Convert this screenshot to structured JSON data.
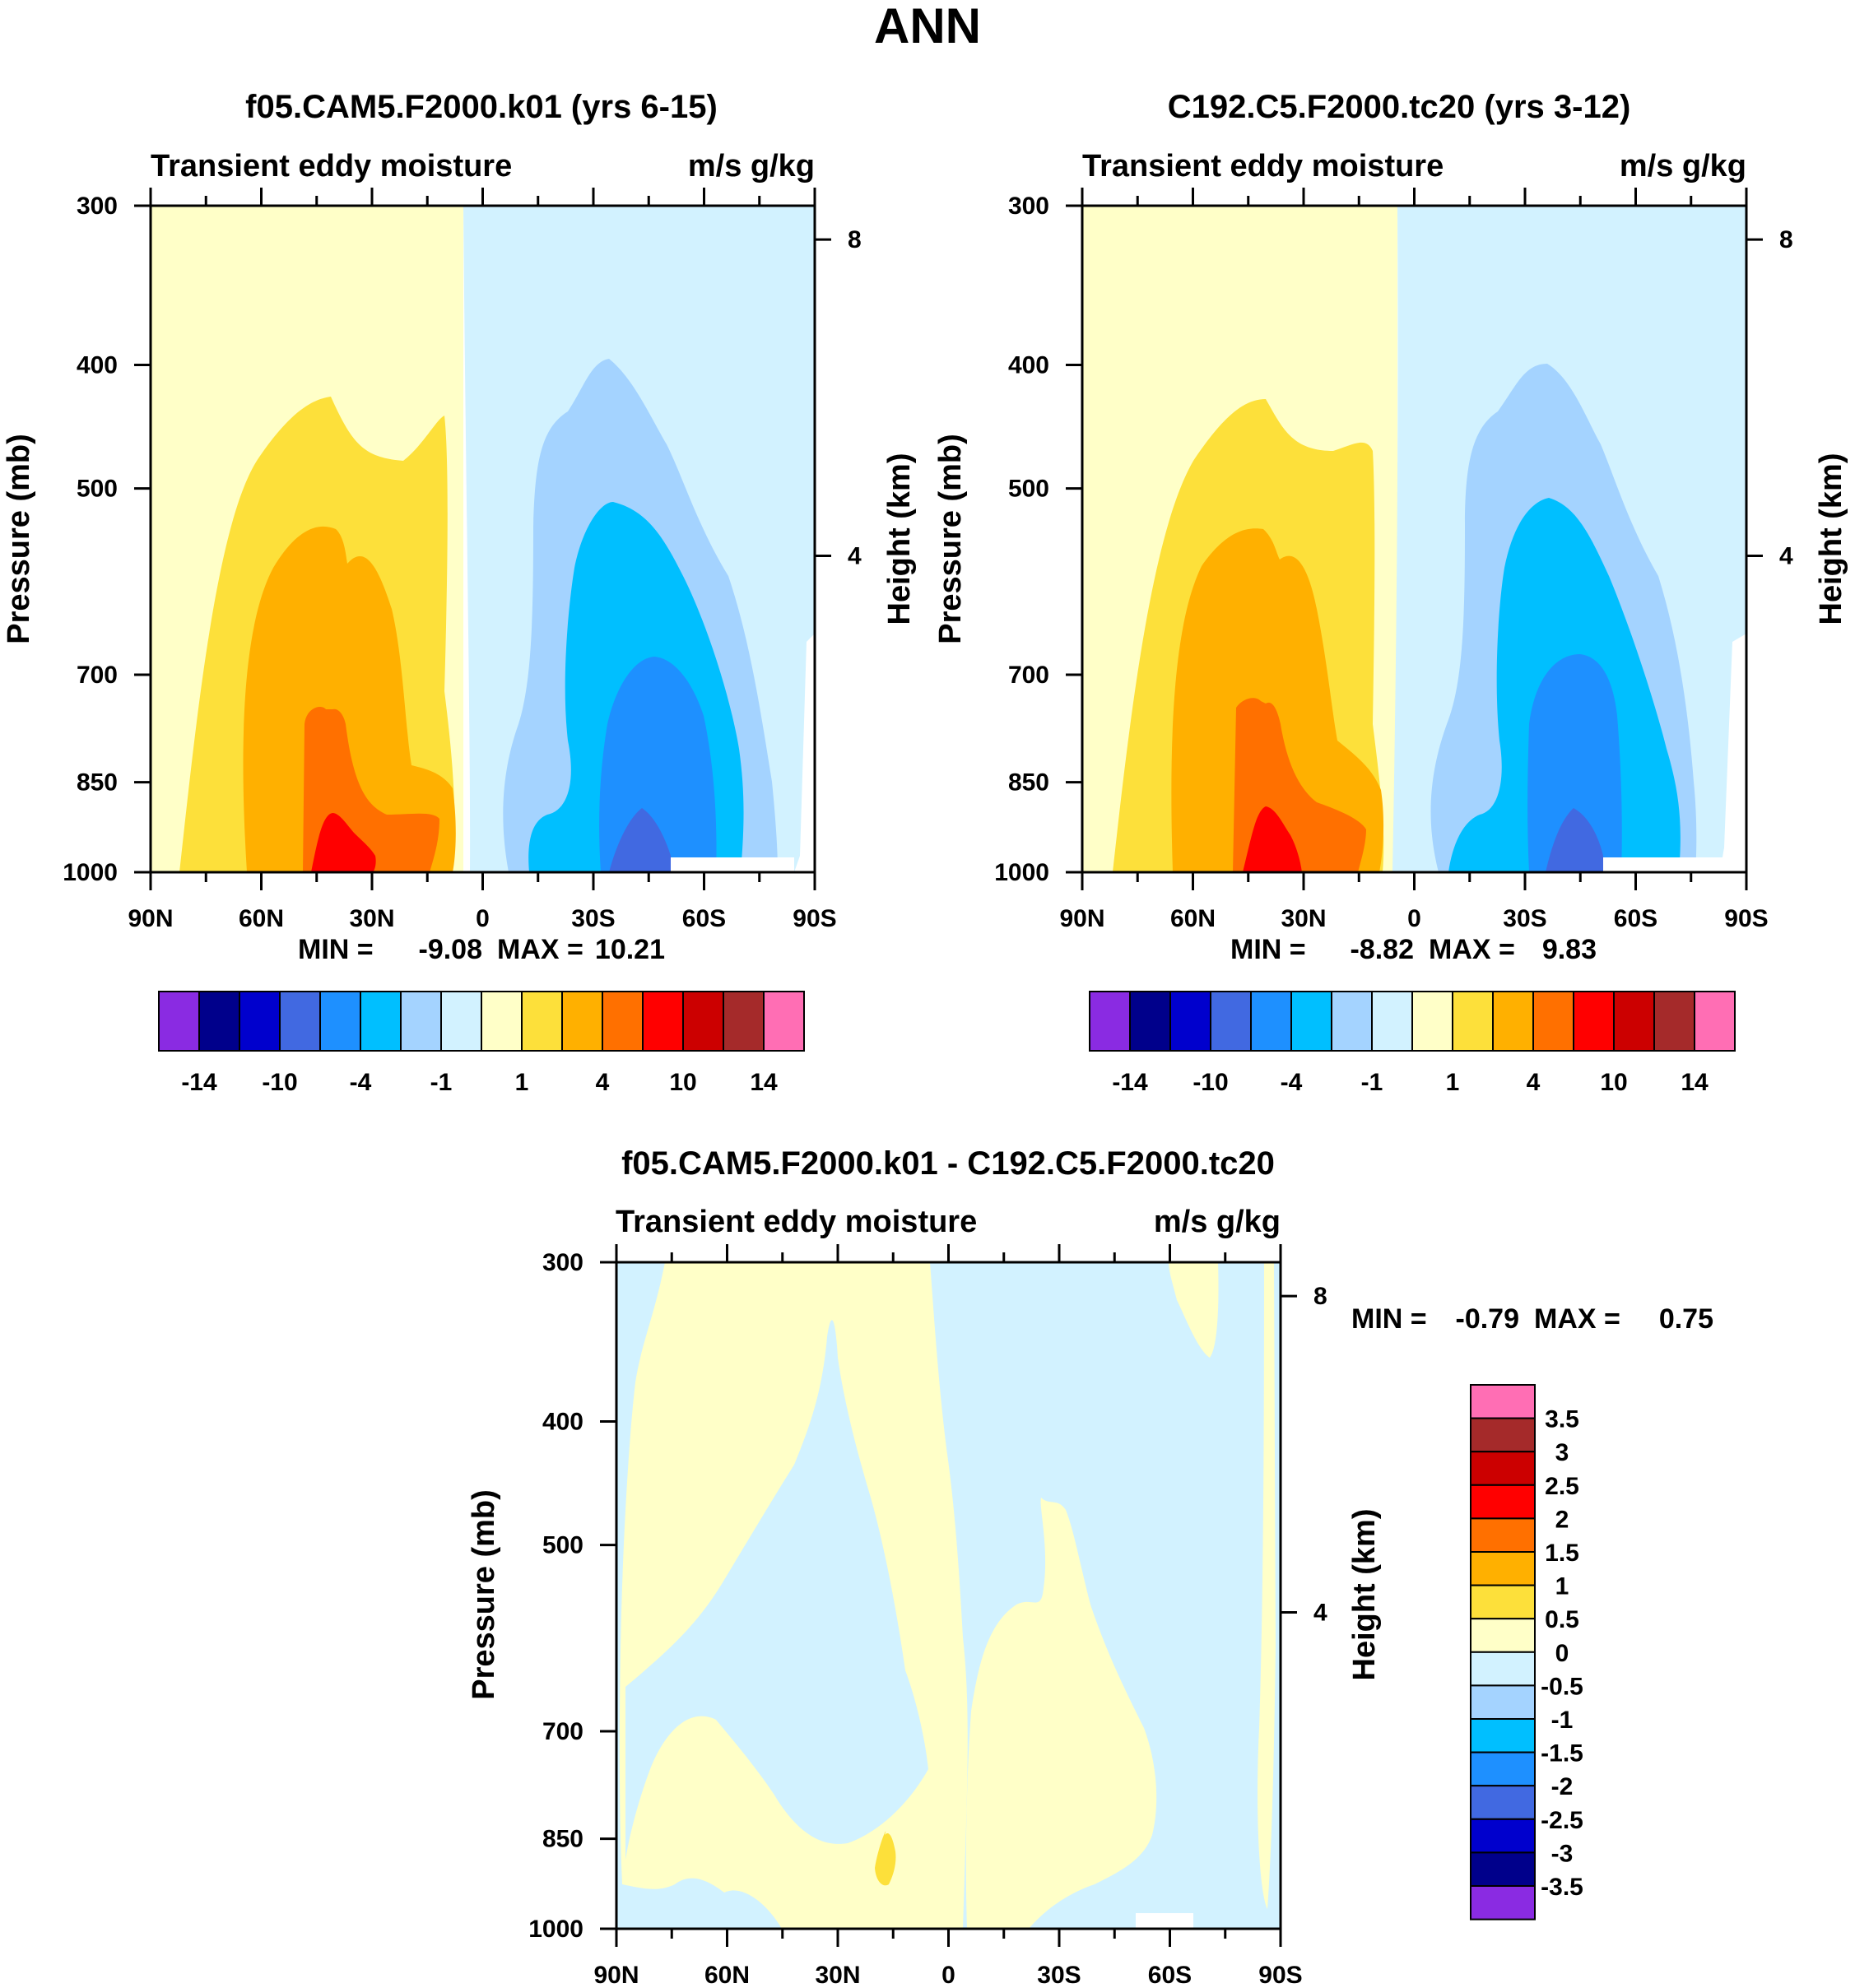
{
  "figure": {
    "title": "ANN"
  },
  "colors": {
    "main_levels_palette": [
      "#8a2be2",
      "#00008b",
      "#0000cd",
      "#4169e1",
      "#1e90ff",
      "#00bfff",
      "#a4d3ff",
      "#d2f2ff",
      "#ffffc8",
      "#fde03a",
      "#ffb000",
      "#ff7000",
      "#ff0000",
      "#cc0000",
      "#a52a2a",
      "#ff6eb4"
    ],
    "diff_levels_palette": [
      "#8a2be2",
      "#00008b",
      "#0000cd",
      "#4169e1",
      "#1e90ff",
      "#00bfff",
      "#a4d3ff",
      "#d2f2ff",
      "#ffffc8",
      "#fde03a",
      "#ffb000",
      "#ff7000",
      "#ff0000",
      "#cc0000",
      "#a52a2a",
      "#ff6eb4"
    ]
  },
  "chart_data": [
    {
      "type": "heatmap",
      "title": "f05.CAM5.F2000.k01 (yrs 6-15)",
      "left_label": "Transient eddy moisture",
      "right_label": "m/s g/kg",
      "ylabel": "Pressure (mb)",
      "y2label": "Height (km)",
      "x_ticks": [
        "90N",
        "60N",
        "30N",
        "0",
        "30S",
        "60S",
        "90S"
      ],
      "x_range": [
        90,
        -90
      ],
      "y_ticks": [
        300,
        400,
        500,
        700,
        850,
        1000
      ],
      "y_range": [
        300,
        1000
      ],
      "y2_ticks": [
        8,
        4
      ],
      "stats": {
        "min_label": "MIN =",
        "min": "-9.08",
        "max_label": "MAX =",
        "max": "10.21"
      },
      "colorbar_labels": [
        "-14",
        "-10",
        "-4",
        "-1",
        "1",
        "4",
        "10",
        "14"
      ],
      "features": [
        {
          "name": "nh-max",
          "lat": 40,
          "peak": 10.21
        },
        {
          "name": "sh-min",
          "lat": -45,
          "peak": -9.08
        }
      ]
    },
    {
      "type": "heatmap",
      "title": "C192.C5.F2000.tc20 (yrs 3-12)",
      "left_label": "Transient eddy moisture",
      "right_label": "m/s g/kg",
      "ylabel": "Pressure (mb)",
      "y2label": "Height (km)",
      "x_ticks": [
        "90N",
        "60N",
        "30N",
        "0",
        "30S",
        "60S",
        "90S"
      ],
      "x_range": [
        90,
        -90
      ],
      "y_ticks": [
        300,
        400,
        500,
        700,
        850,
        1000
      ],
      "y_range": [
        300,
        1000
      ],
      "y2_ticks": [
        8,
        4
      ],
      "stats": {
        "min_label": "MIN =",
        "min": "-8.82",
        "max_label": "MAX =",
        "max": "9.83"
      },
      "colorbar_labels": [
        "-14",
        "-10",
        "-4",
        "-1",
        "1",
        "4",
        "10",
        "14"
      ],
      "features": [
        {
          "name": "nh-max",
          "lat": 40,
          "peak": 9.83
        },
        {
          "name": "sh-min",
          "lat": -45,
          "peak": -8.82
        }
      ]
    },
    {
      "type": "heatmap",
      "title": "f05.CAM5.F2000.k01 - C192.C5.F2000.tc20",
      "left_label": "Transient eddy moisture",
      "right_label": "m/s g/kg",
      "ylabel": "Pressure (mb)",
      "y2label": "Height (km)",
      "x_ticks": [
        "90N",
        "60N",
        "30N",
        "0",
        "30S",
        "60S",
        "90S"
      ],
      "x_range": [
        90,
        -90
      ],
      "y_ticks": [
        300,
        400,
        500,
        700,
        850,
        1000
      ],
      "y_range": [
        300,
        1000
      ],
      "y2_ticks": [
        8,
        4
      ],
      "stats": {
        "min_label": "MIN =",
        "min": "-0.79",
        "max_label": "MAX =",
        "max": "0.75"
      },
      "colorbar_labels": [
        "3.5",
        "3",
        "2.5",
        "2",
        "1.5",
        "1",
        "0.5",
        "0",
        "-0.5",
        "-1",
        "-1.5",
        "-2",
        "-2.5",
        "-3",
        "-3.5"
      ]
    }
  ]
}
